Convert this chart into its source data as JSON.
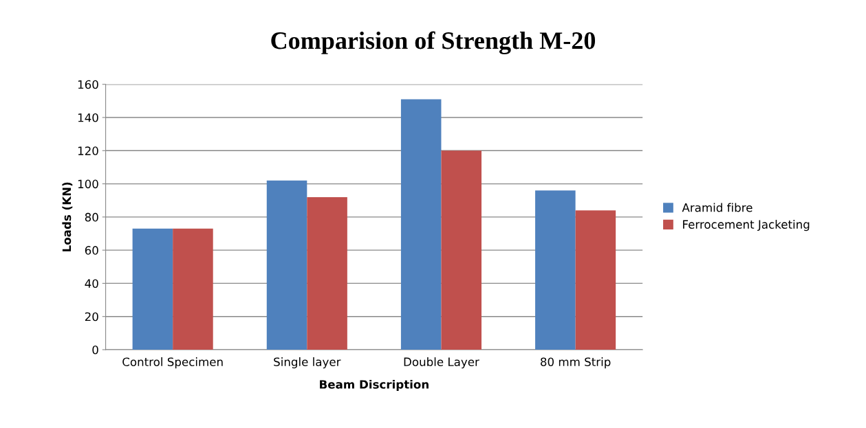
{
  "chart_data": {
    "type": "bar",
    "title": "Comparision of Strength M-20",
    "xlabel": "Beam Discription",
    "ylabel": "Loads (KN)",
    "categories": [
      "Control Specimen",
      "Single layer",
      "Double Layer",
      "80 mm Strip"
    ],
    "series": [
      {
        "name": "Aramid fibre",
        "color": "#4f81bd",
        "values": [
          73,
          102,
          151,
          96
        ]
      },
      {
        "name": "Ferrocement Jacketing",
        "color": "#c0504d",
        "values": [
          73,
          92,
          120,
          84
        ]
      }
    ],
    "ylim": [
      0,
      160
    ],
    "yticks": [
      0,
      20,
      40,
      60,
      80,
      100,
      120,
      140,
      160
    ],
    "grid": "y",
    "legend": "right"
  }
}
